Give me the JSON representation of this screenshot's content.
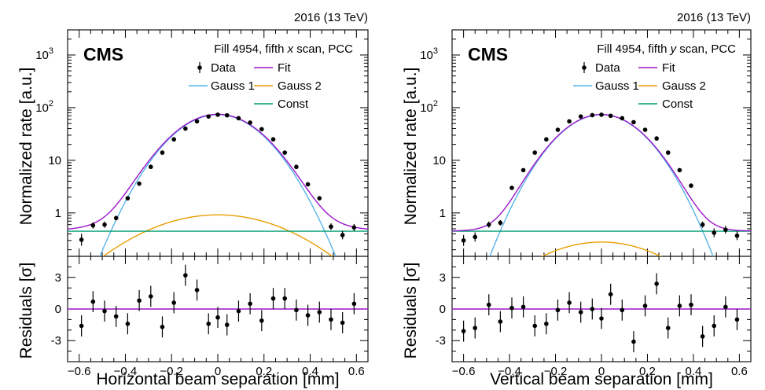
{
  "energy_label": "2016 (13 TeV)",
  "experiment": "CMS",
  "colors": {
    "data": "#000000",
    "fit": "#9b17c9",
    "gauss1": "#56b4e9",
    "gauss2": "#e69f00",
    "const": "#009e73"
  },
  "legend": {
    "data": "Data",
    "fit": "Fit",
    "gauss1": "Gauss 1",
    "gauss2": "Gauss 2",
    "const": "Const"
  },
  "ylabel_top": "Normalized rate [a.u.]",
  "ylabel_bottom": "Residuals [σ]",
  "chart_data": [
    {
      "type": "scatter",
      "title_prefix": "Fill 4954, fifth ",
      "title_var": "x",
      "title_suffix": " scan, PCC",
      "xlabel": "Horizontal beam separation [mm]",
      "xlim": [
        -0.65,
        0.65
      ],
      "xticks": [
        -0.6,
        -0.4,
        -0.2,
        0,
        0.2,
        0.4,
        0.6
      ],
      "ylim_log": [
        0.15,
        3000
      ],
      "yticks": [
        1,
        10,
        100,
        1000
      ],
      "ytick_labels": [
        "1",
        "10",
        "10^2",
        "10^3"
      ],
      "resid_ylim": [
        -5,
        5
      ],
      "resid_yticks": [
        -3,
        0,
        3
      ],
      "model": {
        "gauss1_amp": 73.5,
        "gauss1_sigma": 0.145,
        "gauss2_amp": 0.92,
        "gauss2_sigma": 0.26,
        "const": 0.45
      },
      "x": [
        -0.59,
        -0.54,
        -0.49,
        -0.44,
        -0.39,
        -0.34,
        -0.29,
        -0.24,
        -0.19,
        -0.14,
        -0.09,
        -0.04,
        0.0,
        0.04,
        0.09,
        0.14,
        0.19,
        0.24,
        0.29,
        0.34,
        0.39,
        0.44,
        0.49,
        0.54,
        0.59
      ],
      "rate": [
        0.31,
        0.58,
        0.6,
        0.8,
        1.9,
        3.6,
        7.5,
        14.0,
        25.0,
        40.0,
        55.0,
        68.0,
        73.5,
        71.5,
        63.0,
        52.0,
        39.0,
        25.0,
        14.0,
        7.5,
        3.5,
        1.9,
        0.55,
        0.38,
        0.53
      ],
      "rate_err": [
        0.08,
        0.08,
        0.08,
        0.08,
        0.15,
        0.25,
        0.4,
        0.6,
        0.9,
        1.2,
        1.5,
        1.7,
        1.8,
        1.7,
        1.5,
        1.3,
        1.1,
        0.8,
        0.5,
        0.35,
        0.2,
        0.15,
        0.08,
        0.07,
        0.08
      ],
      "residuals": [
        -1.6,
        0.7,
        -0.2,
        -0.7,
        -1.4,
        0.8,
        1.2,
        -1.7,
        0.6,
        3.2,
        1.8,
        -1.4,
        -0.8,
        -1.5,
        -0.2,
        0.5,
        -1.1,
        1.0,
        1.0,
        -0.1,
        -0.6,
        -0.3,
        -1.0,
        -1.3,
        0.5
      ]
    },
    {
      "type": "scatter",
      "title_prefix": "Fill 4954, fifth ",
      "title_var": "y",
      "title_suffix": " scan, PCC",
      "xlabel": "Vertical beam separation [mm]",
      "xlim": [
        -0.65,
        0.65
      ],
      "xticks": [
        -0.6,
        -0.4,
        -0.2,
        0,
        0.2,
        0.4,
        0.6
      ],
      "ylim_log": [
        0.15,
        3000
      ],
      "yticks": [
        1,
        10,
        100,
        1000
      ],
      "ytick_labels": [
        "1",
        "10",
        "10^2",
        "10^3"
      ],
      "resid_ylim": [
        -5,
        5
      ],
      "resid_yticks": [
        -3,
        0,
        3
      ],
      "model": {
        "gauss1_amp": 73.5,
        "gauss1_sigma": 0.138,
        "gauss2_amp": 0.28,
        "gauss2_sigma": 0.23,
        "const": 0.45
      },
      "x": [
        -0.6,
        -0.55,
        -0.49,
        -0.44,
        -0.39,
        -0.34,
        -0.29,
        -0.24,
        -0.19,
        -0.14,
        -0.09,
        -0.04,
        0.0,
        0.04,
        0.09,
        0.14,
        0.19,
        0.24,
        0.29,
        0.34,
        0.39,
        0.44,
        0.49,
        0.54,
        0.59
      ],
      "rate": [
        0.3,
        0.35,
        0.6,
        0.65,
        3.0,
        6.5,
        14.0,
        25.0,
        38.0,
        55.0,
        68.0,
        72.0,
        73.5,
        70.0,
        63.0,
        53.0,
        38.0,
        26.0,
        14.0,
        6.5,
        3.3,
        0.6,
        0.42,
        0.48,
        0.37
      ],
      "rate_err": [
        0.07,
        0.07,
        0.08,
        0.08,
        0.2,
        0.35,
        0.6,
        0.8,
        1.0,
        1.4,
        1.6,
        1.7,
        1.8,
        1.7,
        1.5,
        1.3,
        1.0,
        0.8,
        0.6,
        0.35,
        0.2,
        0.08,
        0.08,
        0.08,
        0.07
      ],
      "residuals": [
        -2.1,
        -1.8,
        0.4,
        -1.2,
        0.1,
        0.2,
        -1.6,
        -1.4,
        -0.1,
        0.6,
        -0.3,
        0.0,
        -0.9,
        1.4,
        -0.1,
        -3.1,
        0.3,
        2.4,
        -1.8,
        0.3,
        0.4,
        -2.6,
        -1.6,
        0.2,
        -1.0
      ]
    }
  ]
}
